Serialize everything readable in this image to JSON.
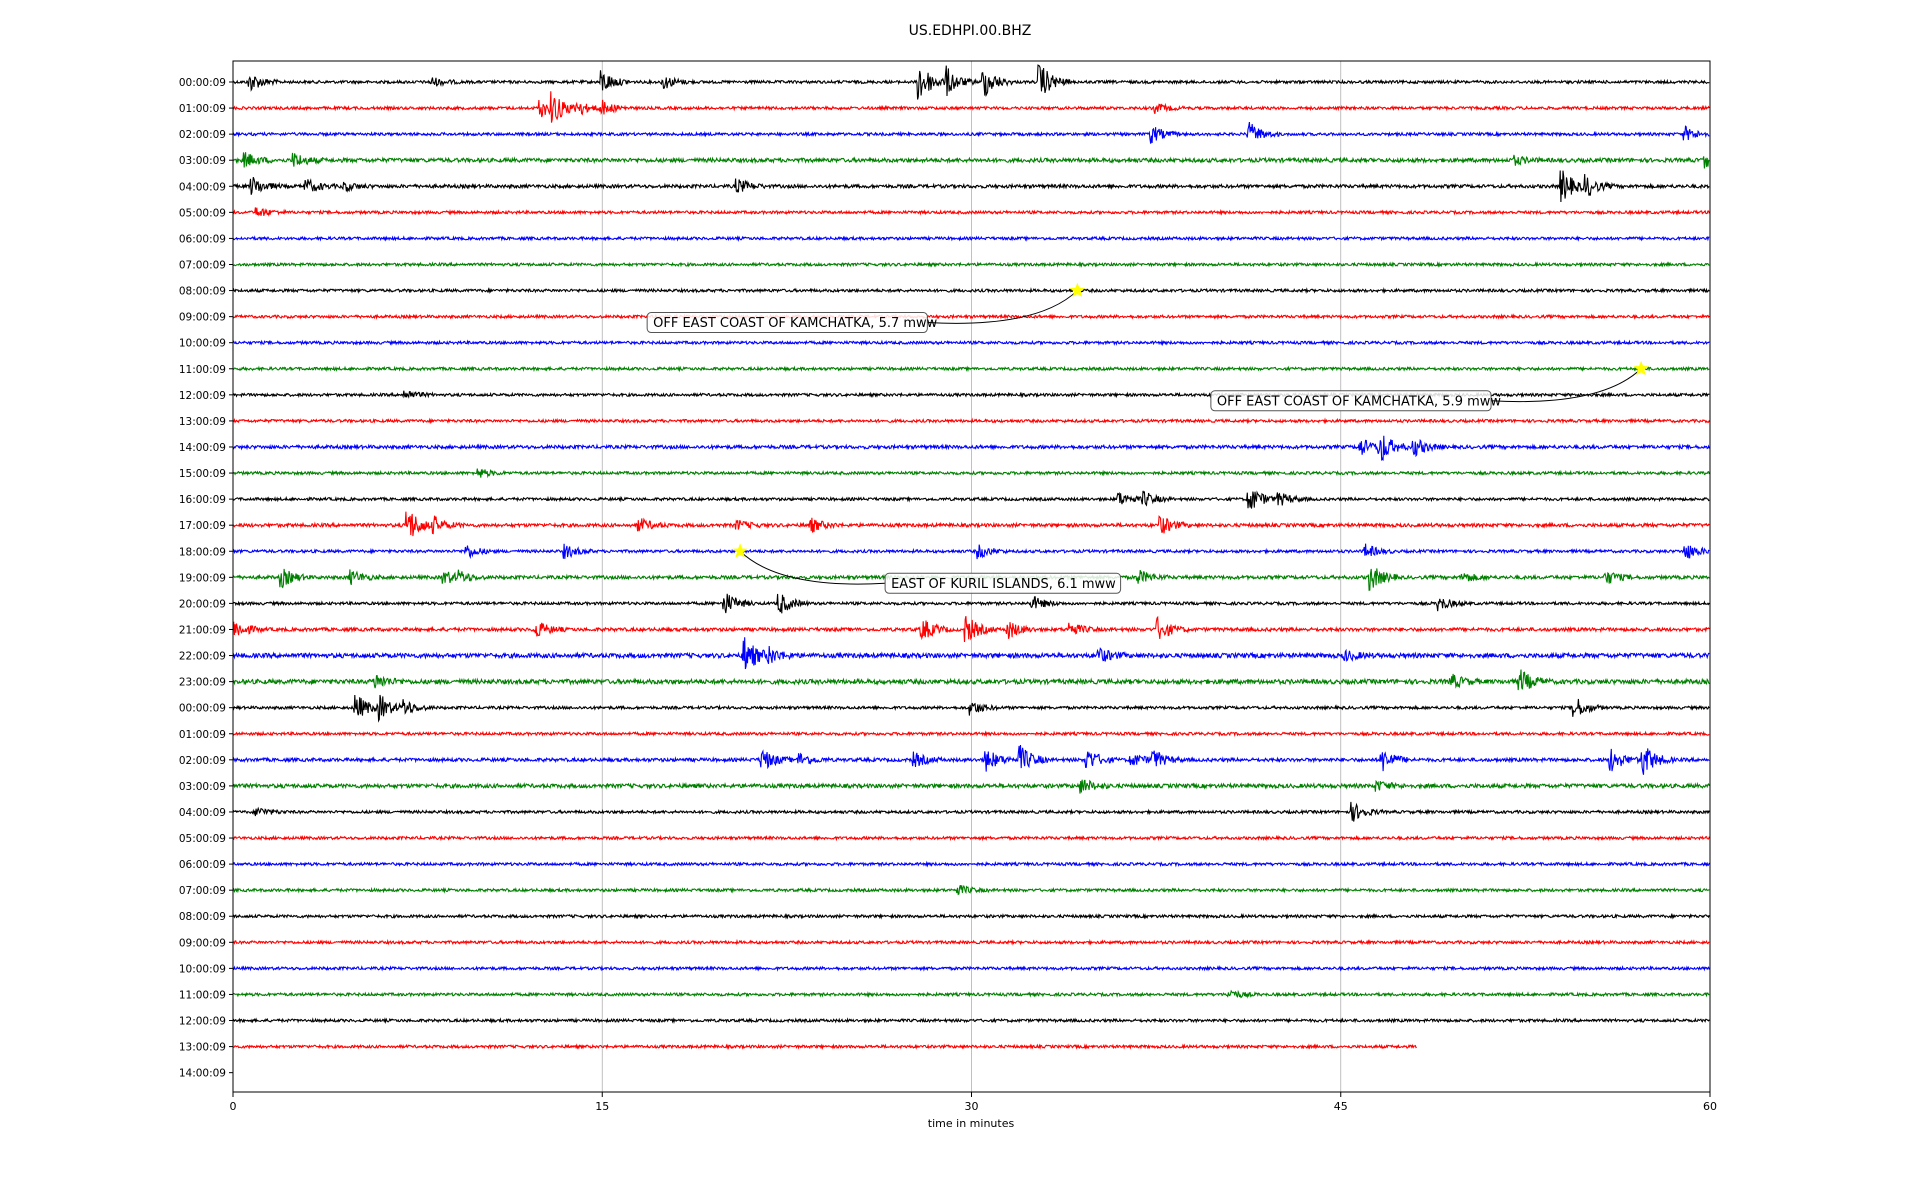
{
  "chart_data": {
    "type": "line",
    "title": "US.EDHPI.00.BHZ",
    "xlabel": "time in minutes",
    "ylabel": "",
    "xlim": [
      0,
      60
    ],
    "x_ticks": [
      "0",
      "15",
      "30",
      "45",
      "60"
    ],
    "x_tick_values": [
      0,
      15,
      30,
      45,
      60
    ],
    "grid_x": true,
    "row_labels": [
      "00:00:09",
      "01:00:09",
      "02:00:09",
      "03:00:09",
      "04:00:09",
      "05:00:09",
      "06:00:09",
      "07:00:09",
      "08:00:09",
      "09:00:09",
      "10:00:09",
      "11:00:09",
      "12:00:09",
      "13:00:09",
      "14:00:09",
      "15:00:09",
      "16:00:09",
      "17:00:09",
      "18:00:09",
      "19:00:09",
      "20:00:09",
      "21:00:09",
      "22:00:09",
      "23:00:09",
      "00:00:09",
      "01:00:09",
      "02:00:09",
      "03:00:09",
      "04:00:09",
      "05:00:09",
      "06:00:09",
      "07:00:09",
      "08:00:09",
      "09:00:09",
      "10:00:09",
      "11:00:09",
      "12:00:09",
      "13:00:09",
      "14:00:09"
    ],
    "trace_colors": [
      "#000000",
      "#ff0000",
      "#0000ff",
      "#008000"
    ],
    "traces": [
      {
        "row": 0,
        "noise": 1.0,
        "bursts": [
          {
            "t": 0.7,
            "a": 4
          },
          {
            "t": 8.1,
            "a": 2
          },
          {
            "t": 15.0,
            "a": 5
          },
          {
            "t": 17.5,
            "a": 3
          },
          {
            "t": 27.9,
            "a": 9
          },
          {
            "t": 29.0,
            "a": 6
          },
          {
            "t": 30.5,
            "a": 7
          },
          {
            "t": 32.8,
            "a": 8
          }
        ]
      },
      {
        "row": 1,
        "noise": 1.0,
        "bursts": [
          {
            "t": 12.5,
            "a": 4
          },
          {
            "t": 13.0,
            "a": 6
          },
          {
            "t": 14.0,
            "a": 3
          },
          {
            "t": 15.0,
            "a": 3
          },
          {
            "t": 37.5,
            "a": 2
          }
        ]
      },
      {
        "row": 2,
        "noise": 1.0,
        "bursts": [
          {
            "t": 37.3,
            "a": 4
          },
          {
            "t": 41.3,
            "a": 5
          },
          {
            "t": 59.0,
            "a": 3
          }
        ]
      },
      {
        "row": 3,
        "noise": 1.4,
        "bursts": [
          {
            "t": 0.5,
            "a": 3
          },
          {
            "t": 2.5,
            "a": 3
          },
          {
            "t": 52.0,
            "a": 2
          },
          {
            "t": 59.8,
            "a": 3
          }
        ]
      },
      {
        "row": 4,
        "noise": 1.2,
        "bursts": [
          {
            "t": 0.8,
            "a": 4
          },
          {
            "t": 3.0,
            "a": 3
          },
          {
            "t": 4.5,
            "a": 2
          },
          {
            "t": 20.5,
            "a": 3
          },
          {
            "t": 54.0,
            "a": 7
          },
          {
            "t": 55.0,
            "a": 4
          }
        ]
      },
      {
        "row": 5,
        "noise": 1.0,
        "bursts": [
          {
            "t": 1.0,
            "a": 2
          }
        ]
      },
      {
        "row": 6,
        "noise": 1.0,
        "bursts": []
      },
      {
        "row": 7,
        "noise": 1.0,
        "bursts": []
      },
      {
        "row": 8,
        "noise": 1.0,
        "bursts": []
      },
      {
        "row": 9,
        "noise": 1.0,
        "bursts": []
      },
      {
        "row": 10,
        "noise": 1.0,
        "bursts": []
      },
      {
        "row": 11,
        "noise": 1.0,
        "bursts": []
      },
      {
        "row": 12,
        "noise": 1.0,
        "bursts": [
          {
            "t": 7.0,
            "a": 2
          }
        ]
      },
      {
        "row": 13,
        "noise": 1.0,
        "bursts": []
      },
      {
        "row": 14,
        "noise": 1.2,
        "bursts": [
          {
            "t": 45.8,
            "a": 4
          },
          {
            "t": 46.6,
            "a": 7
          },
          {
            "t": 48.0,
            "a": 4
          }
        ]
      },
      {
        "row": 15,
        "noise": 1.0,
        "bursts": [
          {
            "t": 10.0,
            "a": 2
          }
        ]
      },
      {
        "row": 16,
        "noise": 1.0,
        "bursts": [
          {
            "t": 36.0,
            "a": 3
          },
          {
            "t": 37.0,
            "a": 3
          },
          {
            "t": 41.3,
            "a": 6
          },
          {
            "t": 42.5,
            "a": 3
          }
        ]
      },
      {
        "row": 17,
        "noise": 1.2,
        "bursts": [
          {
            "t": 7.1,
            "a": 8
          },
          {
            "t": 8.2,
            "a": 3
          },
          {
            "t": 16.5,
            "a": 3
          },
          {
            "t": 20.5,
            "a": 2
          },
          {
            "t": 23.5,
            "a": 3
          },
          {
            "t": 37.7,
            "a": 4
          }
        ]
      },
      {
        "row": 18,
        "noise": 1.0,
        "bursts": [
          {
            "t": 9.5,
            "a": 3
          },
          {
            "t": 13.5,
            "a": 3
          },
          {
            "t": 30.3,
            "a": 3
          },
          {
            "t": 46.0,
            "a": 3
          },
          {
            "t": 59.0,
            "a": 4
          }
        ]
      },
      {
        "row": 19,
        "noise": 1.2,
        "bursts": [
          {
            "t": 2.0,
            "a": 4
          },
          {
            "t": 4.8,
            "a": 3
          },
          {
            "t": 8.6,
            "a": 3
          },
          {
            "t": 9.2,
            "a": 2
          },
          {
            "t": 36.8,
            "a": 3
          },
          {
            "t": 46.2,
            "a": 6
          },
          {
            "t": 50.0,
            "a": 2
          },
          {
            "t": 55.8,
            "a": 3
          }
        ]
      },
      {
        "row": 20,
        "noise": 1.0,
        "bursts": [
          {
            "t": 20.0,
            "a": 5
          },
          {
            "t": 22.2,
            "a": 5
          },
          {
            "t": 32.5,
            "a": 3
          },
          {
            "t": 49.0,
            "a": 3
          }
        ]
      },
      {
        "row": 21,
        "noise": 1.2,
        "bursts": [
          {
            "t": 0.1,
            "a": 4
          },
          {
            "t": 12.3,
            "a": 4
          },
          {
            "t": 28.0,
            "a": 5
          },
          {
            "t": 29.8,
            "a": 6
          },
          {
            "t": 31.5,
            "a": 4
          },
          {
            "t": 34.0,
            "a": 3
          },
          {
            "t": 37.6,
            "a": 5
          }
        ]
      },
      {
        "row": 22,
        "noise": 1.6,
        "bursts": [
          {
            "t": 20.8,
            "a": 8
          },
          {
            "t": 21.8,
            "a": 3
          },
          {
            "t": 35.2,
            "a": 3
          },
          {
            "t": 45.2,
            "a": 2
          }
        ]
      },
      {
        "row": 23,
        "noise": 1.6,
        "bursts": [
          {
            "t": 5.8,
            "a": 3
          },
          {
            "t": 49.5,
            "a": 3
          },
          {
            "t": 52.3,
            "a": 5
          }
        ]
      },
      {
        "row": 24,
        "noise": 1.0,
        "bursts": [
          {
            "t": 5.0,
            "a": 6
          },
          {
            "t": 6.0,
            "a": 5
          },
          {
            "t": 7.0,
            "a": 3
          },
          {
            "t": 30.0,
            "a": 3
          },
          {
            "t": 54.5,
            "a": 5
          }
        ]
      },
      {
        "row": 25,
        "noise": 1.0,
        "bursts": []
      },
      {
        "row": 26,
        "noise": 1.2,
        "bursts": [
          {
            "t": 21.5,
            "a": 5
          },
          {
            "t": 23.0,
            "a": 3
          },
          {
            "t": 27.7,
            "a": 3
          },
          {
            "t": 30.6,
            "a": 5
          },
          {
            "t": 32.0,
            "a": 6
          },
          {
            "t": 34.7,
            "a": 5
          },
          {
            "t": 36.5,
            "a": 3
          },
          {
            "t": 37.4,
            "a": 4
          },
          {
            "t": 46.7,
            "a": 5
          },
          {
            "t": 56.0,
            "a": 5
          },
          {
            "t": 57.3,
            "a": 7
          }
        ]
      },
      {
        "row": 27,
        "noise": 1.4,
        "bursts": [
          {
            "t": 34.5,
            "a": 3
          },
          {
            "t": 46.5,
            "a": 2
          }
        ]
      },
      {
        "row": 28,
        "noise": 1.0,
        "bursts": [
          {
            "t": 1.0,
            "a": 2
          },
          {
            "t": 45.5,
            "a": 4
          }
        ]
      },
      {
        "row": 29,
        "noise": 1.0,
        "bursts": []
      },
      {
        "row": 30,
        "noise": 1.0,
        "bursts": []
      },
      {
        "row": 31,
        "noise": 1.0,
        "bursts": [
          {
            "t": 29.5,
            "a": 2
          }
        ]
      },
      {
        "row": 32,
        "noise": 1.0,
        "bursts": []
      },
      {
        "row": 33,
        "noise": 1.0,
        "bursts": []
      },
      {
        "row": 34,
        "noise": 1.0,
        "bursts": []
      },
      {
        "row": 35,
        "noise": 1.0,
        "bursts": [
          {
            "t": 40.5,
            "a": 2
          }
        ]
      },
      {
        "row": 36,
        "noise": 1.0,
        "bursts": []
      },
      {
        "row": 37,
        "noise": 1.0,
        "end_t": 48.1,
        "bursts": []
      }
    ],
    "events": [
      {
        "label": "OFF EAST COAST OF KAMCHATKA, 5.7 mww",
        "row": 8,
        "t": 34.3,
        "star_color": "#ffff00"
      },
      {
        "label": "OFF EAST COAST OF KAMCHATKA, 5.9 mww",
        "row": 11,
        "t": 57.2,
        "star_color": "#ffff00"
      },
      {
        "label": "EAST OF KURIL ISLANDS, 6.1 mww",
        "row": 18,
        "t": 20.6,
        "star_color": "#ffff00"
      }
    ]
  }
}
